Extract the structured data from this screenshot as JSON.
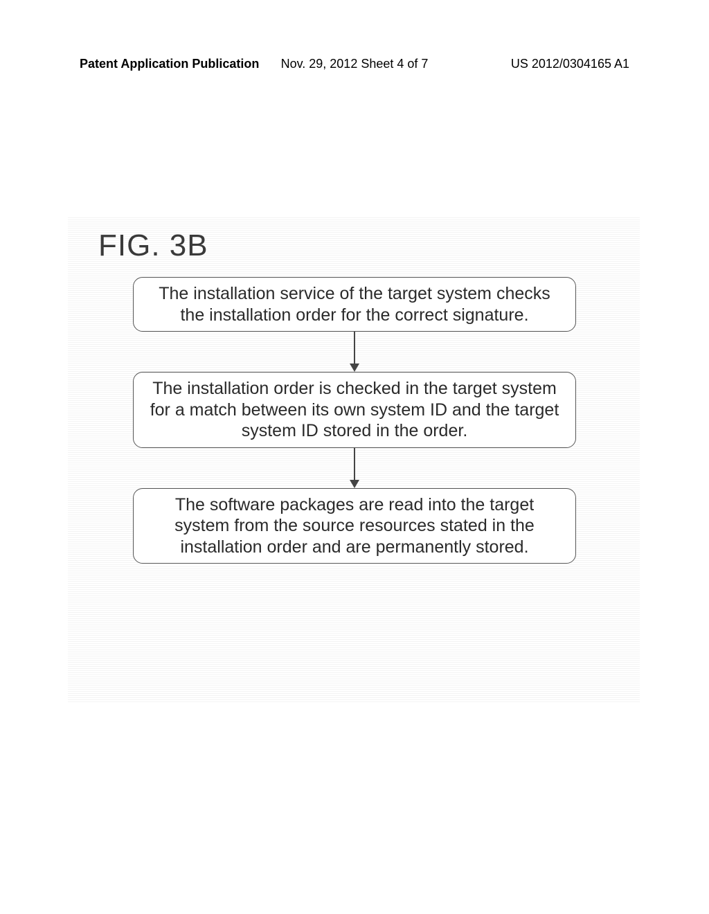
{
  "header": {
    "left": "Patent Application Publication",
    "center": "Nov. 29, 2012  Sheet 4 of 7",
    "right": "US 2012/0304165 A1"
  },
  "figure": {
    "label": "FIG. 3B",
    "boxes": [
      "The installation service of the target system checks the installation order for the correct signature.",
      "The installation order is checked in the target system for a match between its own system ID and the target system ID stored in the order.",
      "The software packages are read into the target system from the source resources stated in the installation order and are permanently stored."
    ]
  },
  "colors": {
    "text": "#2a2a2a",
    "border": "#555555",
    "arrow": "#444444",
    "background": "#ffffff"
  },
  "layout": {
    "box_border_radius": 14,
    "box_font_size": 25,
    "label_font_size": 44
  }
}
